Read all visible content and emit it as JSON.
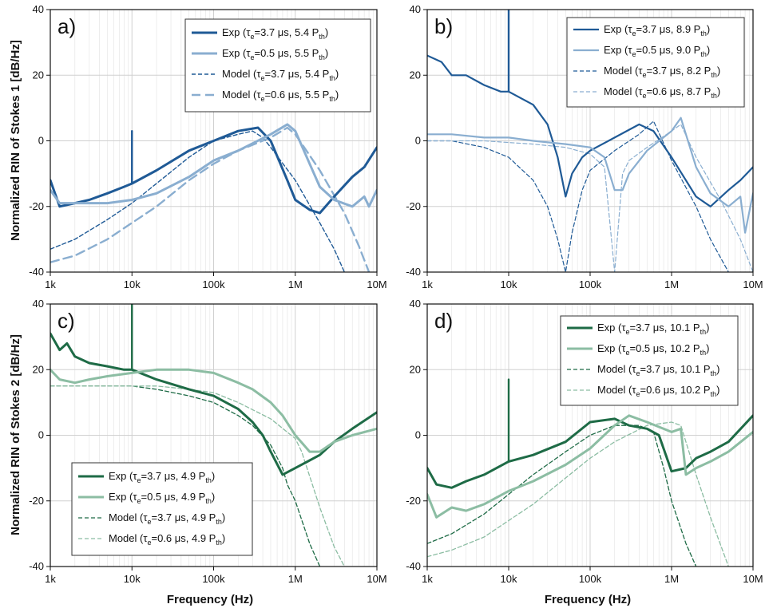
{
  "figure": {
    "xlabel": "Frequency (Hz)",
    "ylabel_top": "Normalized RIN of Stokes 1 [dB/Hz]",
    "ylabel_bottom": "Normalized RIN of Stokes 2 [dB/Hz]"
  },
  "colors": {
    "blue_dark": "#1f5a96",
    "blue_light": "#8aaed0",
    "green_dark": "#1e6b46",
    "green_light": "#8cbda3",
    "grid": "#d0d0d0",
    "grid_minor": "#e6e6e6"
  },
  "chart_data": [
    {
      "panel": "a)",
      "type": "line",
      "xscale": "log",
      "xlim": [
        1000,
        10000000
      ],
      "ylim": [
        -40,
        40
      ],
      "xticks": [
        "1k",
        "10k",
        "100k",
        "1M",
        "10M"
      ],
      "yticks": [
        "-40",
        "-20",
        "0",
        "20",
        "40"
      ],
      "legend_position": "top-right",
      "series": [
        {
          "name": "Exp (τe=3.7 μs, 5.4 Pth)",
          "legend": {
            "a": "Exp (τ",
            "b": "e",
            "c": "=3.7 μs, 5.4 P",
            "d": "th",
            "e": ")"
          },
          "color": "blue_dark",
          "style": "solid",
          "width": 3,
          "x": [
            1000,
            1300,
            2000,
            3000,
            5000,
            8000,
            10000,
            20000,
            50000,
            100000,
            200000,
            350000,
            500000,
            800000,
            1000000,
            1500000,
            2000000,
            3000000,
            5000000,
            7000000,
            10000000
          ],
          "y": [
            -12,
            -20,
            -19,
            -18,
            -16,
            -14,
            -13,
            -9,
            -3,
            0,
            3,
            4,
            0,
            -12,
            -18,
            -21,
            -22,
            -17,
            -11,
            -8,
            -2
          ],
          "spike": {
            "x": 10000,
            "y": 3
          }
        },
        {
          "name": "Exp (τe=0.5 μs, 5.5 Pth)",
          "legend": {
            "a": "Exp (τ",
            "b": "e",
            "c": "=0.5 μs, 5.5 P",
            "d": "th",
            "e": ")"
          },
          "color": "blue_light",
          "style": "solid",
          "width": 3,
          "x": [
            1000,
            1300,
            2000,
            5000,
            10000,
            20000,
            50000,
            100000,
            200000,
            500000,
            800000,
            1000000,
            1500000,
            2000000,
            3000000,
            5000000,
            7000000,
            8000000,
            10000000
          ],
          "y": [
            -15,
            -19,
            -19,
            -19,
            -18,
            -16,
            -11,
            -6,
            -3,
            2,
            5,
            3,
            -7,
            -14,
            -18,
            -20,
            -17,
            -20,
            -15
          ]
        },
        {
          "name": "Model (τe=3.7 μs, 5.4 Pth)",
          "legend": {
            "a": "Model (τ",
            "b": "e",
            "c": "=3.7 μs, 5.4 P",
            "d": "th",
            "e": ")"
          },
          "color": "blue_dark",
          "style": "dashed",
          "width": 1.4,
          "x": [
            1000,
            2000,
            5000,
            10000,
            20000,
            50000,
            100000,
            200000,
            300000,
            400000,
            500000,
            1000000,
            2000000,
            3000000,
            4000000
          ],
          "y": [
            -33,
            -30,
            -24,
            -19,
            -13,
            -5,
            0,
            2,
            3,
            1,
            -2,
            -12,
            -25,
            -33,
            -40
          ]
        },
        {
          "name": "Model (τe=0.6 μs, 5.5 Pth)",
          "legend": {
            "a": "Model (τ",
            "b": "e",
            "c": "=0.6 μs, 5.5 P",
            "d": "th",
            "e": ")"
          },
          "color": "blue_light",
          "style": "dashed",
          "width": 2.4,
          "x": [
            1000,
            2000,
            5000,
            10000,
            20000,
            50000,
            100000,
            200000,
            500000,
            800000,
            1000000,
            2000000,
            4000000,
            6000000,
            8000000
          ],
          "y": [
            -37,
            -35,
            -30,
            -25,
            -20,
            -12,
            -7,
            -3,
            1,
            4,
            2,
            -9,
            -22,
            -32,
            -40
          ]
        }
      ]
    },
    {
      "panel": "b)",
      "type": "line",
      "xscale": "log",
      "xlim": [
        1000,
        10000000
      ],
      "ylim": [
        -40,
        40
      ],
      "xticks": [
        "1k",
        "10k",
        "100k",
        "1M",
        "10M"
      ],
      "yticks": [
        "-40",
        "-20",
        "0",
        "20",
        "40"
      ],
      "legend_position": "top-right",
      "series": [
        {
          "name": "Exp (τe=3.7 μs, 8.9 Pth)",
          "legend": {
            "a": "Exp (τ",
            "b": "e",
            "c": "=3.7 μs, 8.9 P",
            "d": "th",
            "e": ")"
          },
          "color": "blue_dark",
          "style": "solid",
          "width": 2.2,
          "x": [
            1000,
            1500,
            2000,
            3000,
            5000,
            8000,
            10000,
            20000,
            30000,
            40000,
            50000,
            60000,
            80000,
            100000,
            200000,
            400000,
            600000,
            1000000,
            2000000,
            3000000,
            5000000,
            7000000,
            10000000
          ],
          "y": [
            26,
            24,
            20,
            20,
            17,
            15,
            15,
            11,
            5,
            -5,
            -17,
            -10,
            -5,
            -3,
            1,
            5,
            3,
            -5,
            -17,
            -20,
            -15,
            -12,
            -8
          ],
          "spike": {
            "x": 10000,
            "y": 40
          }
        },
        {
          "name": "Exp (τe=0.5 μs, 9.0 Pth)",
          "legend": {
            "a": "Exp (τ",
            "b": "e",
            "c": "=0.5 μs, 9.0 P",
            "d": "th",
            "e": ")"
          },
          "color": "blue_light",
          "style": "solid",
          "width": 2.2,
          "x": [
            1000,
            2000,
            5000,
            10000,
            20000,
            50000,
            100000,
            150000,
            200000,
            250000,
            300000,
            500000,
            1000000,
            1300000,
            2000000,
            3000000,
            5000000,
            7000000,
            8000000,
            10000000
          ],
          "y": [
            2,
            2,
            1,
            1,
            0,
            -1,
            -2,
            -5,
            -15,
            -15,
            -10,
            -3,
            3,
            7,
            -8,
            -16,
            -20,
            -17,
            -28,
            -16
          ]
        },
        {
          "name": "Model (τe=3.7 μs, 8.2 Pth)",
          "legend": {
            "a": "Model (τ",
            "b": "e",
            "c": "=3.7 μs, 8.2 P",
            "d": "th",
            "e": ")"
          },
          "color": "blue_dark",
          "style": "dashed",
          "width": 1.2,
          "x": [
            1000,
            2000,
            5000,
            10000,
            20000,
            30000,
            40000,
            50000,
            60000,
            80000,
            100000,
            200000,
            400000,
            600000,
            1000000,
            2000000,
            3000000,
            5000000
          ],
          "y": [
            0,
            0,
            -2,
            -5,
            -12,
            -20,
            -30,
            -40,
            -28,
            -15,
            -9,
            -3,
            2,
            6,
            -6,
            -20,
            -30,
            -40
          ]
        },
        {
          "name": "Model (τe=0.6 μs, 8.7 Pth)",
          "legend": {
            "a": "Model (τ",
            "b": "e",
            "c": "=0.6 μs, 8.7 P",
            "d": "th",
            "e": ")"
          },
          "color": "blue_light",
          "style": "dashed",
          "width": 1.2,
          "x": [
            1000,
            5000,
            10000,
            20000,
            50000,
            100000,
            150000,
            200000,
            250000,
            300000,
            500000,
            1000000,
            1300000,
            2000000,
            4000000,
            7000000,
            10000000
          ],
          "y": [
            0,
            0,
            -0.5,
            -1,
            -2,
            -4,
            -8,
            -40,
            -10,
            -6,
            -2,
            3,
            5,
            -5,
            -18,
            -30,
            -40
          ]
        }
      ]
    },
    {
      "panel": "c)",
      "type": "line",
      "xscale": "log",
      "xlim": [
        1000,
        10000000
      ],
      "ylim": [
        -40,
        40
      ],
      "xticks": [
        "1k",
        "10k",
        "100k",
        "1M",
        "10M"
      ],
      "yticks": [
        "-40",
        "-20",
        "0",
        "20",
        "40"
      ],
      "legend_position": "bottom-left",
      "series": [
        {
          "name": "Exp (τe=3.7 μs, 4.9 Pth)",
          "legend": {
            "a": "Exp (τ",
            "b": "e",
            "c": "=3.7 μs, 4.9 P",
            "d": "th",
            "e": ")"
          },
          "color": "green_dark",
          "style": "solid",
          "width": 3,
          "x": [
            1000,
            1300,
            1600,
            2000,
            3000,
            5000,
            8000,
            10000,
            20000,
            50000,
            100000,
            200000,
            300000,
            400000,
            500000,
            700000,
            1000000,
            2000000,
            3000000,
            5000000,
            10000000
          ],
          "y": [
            31,
            26,
            28,
            24,
            22,
            21,
            20,
            20,
            17,
            14,
            12,
            8,
            4,
            0,
            -5,
            -12,
            -10,
            -6,
            -2,
            2,
            7
          ],
          "spike": {
            "x": 10000,
            "y": 40
          }
        },
        {
          "name": "Exp (τe=0.5 μs, 4.9 Pth)",
          "legend": {
            "a": "Exp (τ",
            "b": "e",
            "c": "=0.5 μs, 4.9 P",
            "d": "th",
            "e": ")"
          },
          "color": "green_light",
          "style": "solid",
          "width": 3,
          "x": [
            1000,
            1300,
            2000,
            3000,
            5000,
            10000,
            20000,
            50000,
            100000,
            200000,
            300000,
            500000,
            700000,
            1000000,
            1500000,
            2000000,
            3000000,
            5000000,
            10000000
          ],
          "y": [
            20,
            17,
            16,
            17,
            18,
            19,
            20,
            20,
            19,
            16,
            14,
            10,
            6,
            0,
            -5,
            -5,
            -2,
            0,
            2
          ]
        },
        {
          "name": "Model (τe=3.7 μs, 4.9 Pth)",
          "legend": {
            "a": "Model (τ",
            "b": "e",
            "c": "=3.7 μs, 4.9 P",
            "d": "th",
            "e": ")"
          },
          "color": "green_dark",
          "style": "dashed",
          "width": 1.3,
          "x": [
            1000,
            5000,
            10000,
            20000,
            50000,
            100000,
            200000,
            300000,
            500000,
            700000,
            800000,
            1000000,
            1500000,
            2000000
          ],
          "y": [
            15,
            15,
            15,
            14,
            12,
            10,
            6,
            3,
            -3,
            -10,
            -15,
            -20,
            -33,
            -40
          ]
        },
        {
          "name": "Model (τe=0.6 μs, 4.9 Pth)",
          "legend": {
            "a": "Model (τ",
            "b": "e",
            "c": "=0.6 μs, 4.9 P",
            "d": "th",
            "e": ")"
          },
          "color": "green_light",
          "style": "dashed",
          "width": 1.3,
          "x": [
            1000,
            5000,
            10000,
            20000,
            50000,
            100000,
            200000,
            500000,
            1000000,
            1200000,
            2000000,
            3000000,
            4000000
          ],
          "y": [
            15,
            15,
            15,
            15,
            14,
            13,
            10,
            5,
            -1,
            -5,
            -22,
            -34,
            -40
          ]
        }
      ]
    },
    {
      "panel": "d)",
      "type": "line",
      "xscale": "log",
      "xlim": [
        1000,
        10000000
      ],
      "ylim": [
        -40,
        40
      ],
      "xticks": [
        "1k",
        "10k",
        "100k",
        "1M",
        "10M"
      ],
      "yticks": [
        "-40",
        "-20",
        "0",
        "20",
        "40"
      ],
      "legend_position": "top-right",
      "series": [
        {
          "name": "Exp (τe=3.7 μs, 10.1 Pth)",
          "legend": {
            "a": "Exp (τ",
            "b": "e",
            "c": "=3.7 μs, 10.1 P",
            "d": "th",
            "e": ")"
          },
          "color": "green_dark",
          "style": "solid",
          "width": 3,
          "x": [
            1000,
            1300,
            2000,
            3000,
            5000,
            10000,
            20000,
            50000,
            100000,
            200000,
            300000,
            500000,
            700000,
            1000000,
            1500000,
            2000000,
            3000000,
            5000000,
            10000000
          ],
          "y": [
            -10,
            -15,
            -16,
            -14,
            -12,
            -8,
            -6,
            -2,
            4,
            5,
            3,
            2,
            0,
            -11,
            -10,
            -7,
            -5,
            -2,
            6
          ],
          "spike": {
            "x": 10000,
            "y": 17
          }
        },
        {
          "name": "Exp (τe=0.5 μs, 10.2 Pth)",
          "legend": {
            "a": "Exp (τ",
            "b": "e",
            "c": "=0.5 μs, 10.2 P",
            "d": "th",
            "e": ")"
          },
          "color": "green_light",
          "style": "solid",
          "width": 3,
          "x": [
            1000,
            1300,
            2000,
            3000,
            5000,
            10000,
            20000,
            50000,
            100000,
            200000,
            300000,
            500000,
            1000000,
            1300000,
            1500000,
            2000000,
            3000000,
            5000000,
            10000000
          ],
          "y": [
            -18,
            -25,
            -22,
            -23,
            -21,
            -17,
            -14,
            -9,
            -4,
            3,
            6,
            4,
            1,
            2,
            -12,
            -10,
            -8,
            -5,
            1
          ]
        },
        {
          "name": "Model (τe=3.7 μs, 10.1 Pth)",
          "legend": {
            "a": "Model (τ",
            "b": "e",
            "c": "=3.7 μs, 10.1 P",
            "d": "th",
            "e": ")"
          },
          "color": "green_dark",
          "style": "dashed",
          "width": 1.3,
          "x": [
            1000,
            2000,
            5000,
            10000,
            20000,
            50000,
            100000,
            200000,
            400000,
            600000,
            800000,
            1000000,
            1500000,
            2000000
          ],
          "y": [
            -33,
            -30,
            -24,
            -18,
            -12,
            -5,
            0,
            3,
            3,
            1,
            -10,
            -20,
            -33,
            -40
          ]
        },
        {
          "name": "Model (τe=0.6 μs, 10.2 Pth)",
          "legend": {
            "a": "Model (τ",
            "b": "e",
            "c": "=0.6 μs, 10.2 P",
            "d": "th",
            "e": ")"
          },
          "color": "green_light",
          "style": "dashed",
          "width": 1.3,
          "x": [
            1000,
            2000,
            5000,
            10000,
            20000,
            50000,
            100000,
            200000,
            500000,
            1000000,
            1300000,
            2000000,
            3000000,
            5000000
          ],
          "y": [
            -37,
            -35,
            -31,
            -26,
            -21,
            -13,
            -7,
            -2,
            3,
            4,
            3,
            -12,
            -25,
            -40
          ]
        }
      ]
    }
  ]
}
